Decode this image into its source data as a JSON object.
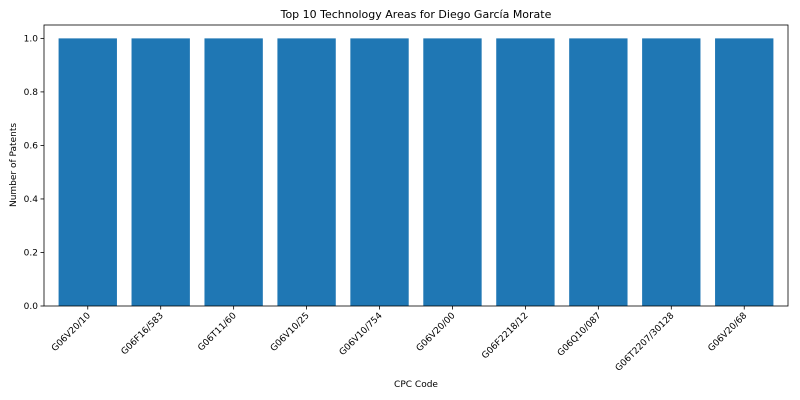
{
  "chart_data": {
    "type": "bar",
    "title": "Top 10 Technology Areas for Diego García Morate",
    "xlabel": "CPC Code",
    "ylabel": "Number of Patents",
    "categories": [
      "G06V20/10",
      "G06F16/583",
      "G06T11/60",
      "G06V10/25",
      "G06V10/754",
      "G06V20/00",
      "G06F2218/12",
      "G06Q10/087",
      "G06T2207/30128",
      "G06V20/68"
    ],
    "values": [
      1,
      1,
      1,
      1,
      1,
      1,
      1,
      1,
      1,
      1
    ],
    "ylim": [
      0,
      1.05
    ],
    "yticks": [
      0.0,
      0.2,
      0.4,
      0.6,
      0.8,
      1.0
    ],
    "ytick_labels": [
      "0.0",
      "0.2",
      "0.4",
      "0.6",
      "0.8",
      "1.0"
    ],
    "grid": false,
    "bar_color": "#1f77b4"
  }
}
